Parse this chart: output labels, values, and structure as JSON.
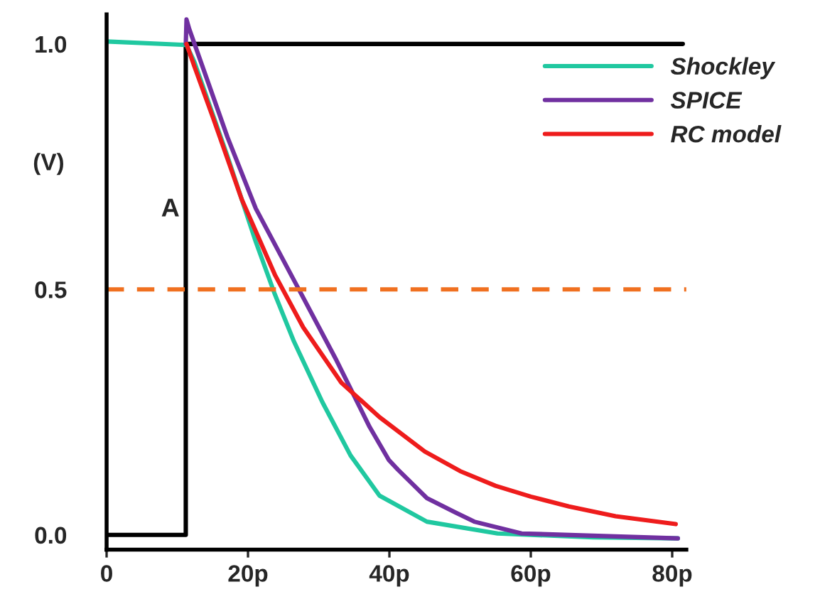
{
  "chart_data": {
    "type": "line",
    "ylabel": "(V)",
    "annotations": [
      "A"
    ],
    "series": [
      {
        "color": "#000000",
        "x": [
          0,
          11.2,
          11.2,
          81.5
        ],
        "values": [
          0,
          0,
          1.0,
          1.0
        ]
      },
      {
        "name": "Shockley",
        "color": "#20c8a0",
        "x": [
          0,
          11.3,
          12.4,
          17.1,
          21.1,
          23.8,
          26.5,
          30.5,
          34.5,
          38.6,
          45.3,
          55.3,
          68.8,
          80.8
        ],
        "values": [
          1.005,
          0.998,
          0.964,
          0.771,
          0.597,
          0.49,
          0.394,
          0.271,
          0.162,
          0.08,
          0.027,
          0.003,
          -0.005,
          -0.007
        ]
      },
      {
        "name": "SPICE",
        "color": "#7030a0",
        "x": [
          11.2,
          11.3,
          11.7,
          17.1,
          21.1,
          27.2,
          32.5,
          37.2,
          39.9,
          41.2,
          45.3,
          49.3,
          52.0,
          58.7,
          80.8
        ],
        "values": [
          1.0,
          1.05,
          1.03,
          0.81,
          0.665,
          0.5,
          0.356,
          0.22,
          0.153,
          0.133,
          0.075,
          0.046,
          0.027,
          0.003,
          -0.007
        ]
      },
      {
        "name": "RC model",
        "color": "#ee1c1c",
        "x": [
          11.3,
          12.4,
          15.1,
          19.1,
          23.8,
          27.8,
          33.2,
          38.6,
          45,
          50,
          55,
          60,
          65.4,
          72,
          80.5
        ],
        "values": [
          1.0,
          0.955,
          0.848,
          0.684,
          0.53,
          0.423,
          0.31,
          0.24,
          0.17,
          0.13,
          0.1,
          0.078,
          0.058,
          0.038,
          0.022
        ]
      }
    ],
    "ref_lines": [
      {
        "axis": "y",
        "value": 0.5,
        "color": "#f07020",
        "line_style": "dashed"
      }
    ],
    "xlim": [
      0,
      82
    ],
    "ylim": [
      -0.03,
      1.06
    ],
    "xticks": [
      0,
      {
        "value": 20,
        "label": "20p"
      },
      {
        "value": 40,
        "label": "40p"
      },
      {
        "value": 60,
        "label": "60p"
      },
      {
        "value": 80,
        "label": "80p"
      }
    ],
    "yticks": [
      {
        "value": 0,
        "label": "0.0"
      },
      {
        "value": 0.5,
        "label": "0.5"
      },
      {
        "value": 1.0,
        "label": "1.0"
      }
    ],
    "grid": false,
    "legend": "top right"
  }
}
